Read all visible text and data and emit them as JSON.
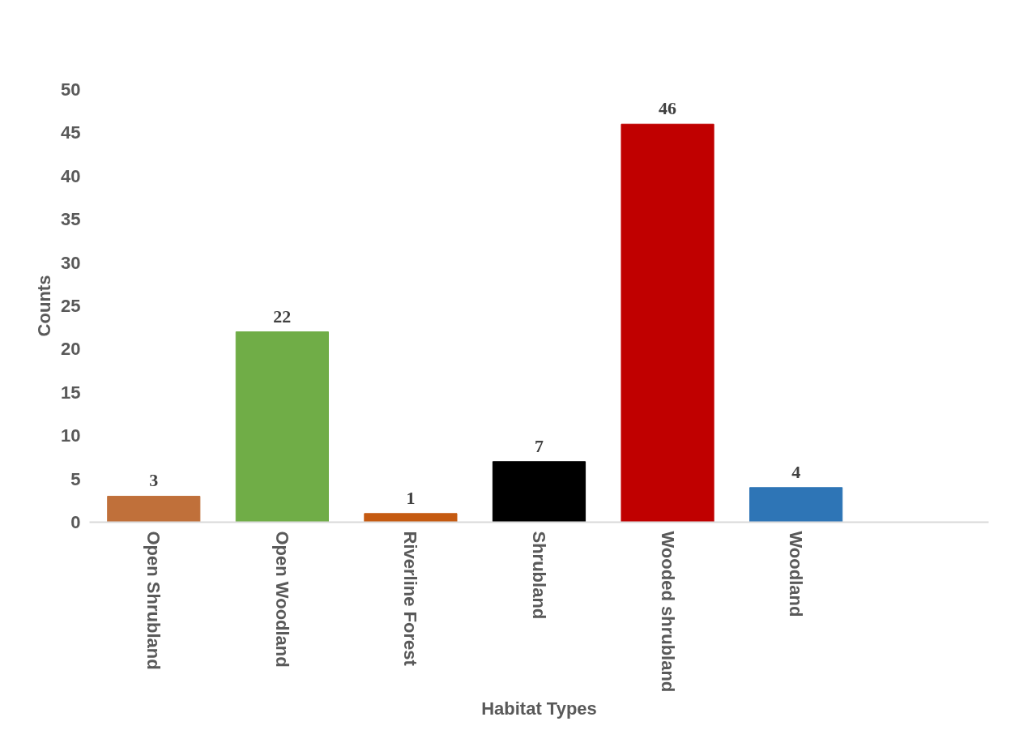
{
  "chart_data": {
    "type": "bar",
    "xlabel": "Habitat Types",
    "ylabel": "Counts",
    "categories": [
      "Open Shrubland",
      "Open Woodland",
      "Riverline Forest",
      "Shrubland",
      "Wooded shrubland",
      "Woodland",
      null
    ],
    "values": [
      3,
      22,
      1,
      7,
      46,
      4,
      null
    ],
    "colors": [
      "#c0703a",
      "#70ad47",
      "#c55a11",
      "#000000",
      "#c00000",
      "#2e75b6",
      "#ffffff"
    ],
    "ylim": [
      0,
      50
    ],
    "yticks": [
      0,
      5,
      10,
      15,
      20,
      25,
      30,
      35,
      40,
      45,
      50
    ],
    "grid": false,
    "data_labels": true
  }
}
